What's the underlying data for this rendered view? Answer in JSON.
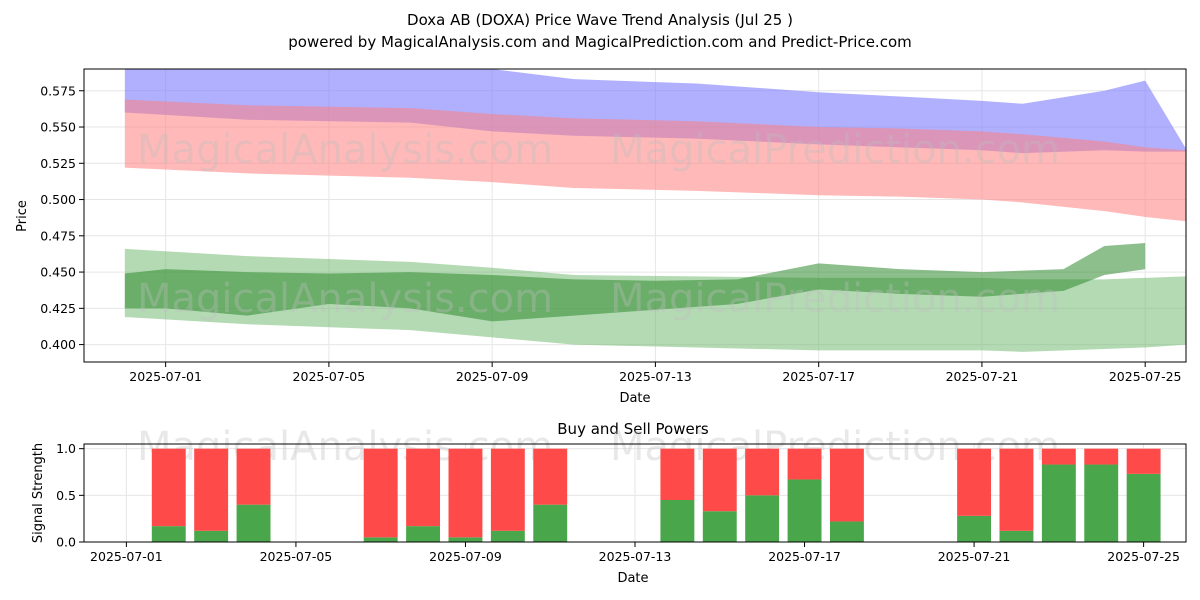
{
  "page": {
    "title_line1": "Doxa AB (DOXA) Price Wave Trend Analysis (Jul 25 )",
    "title_line2": "powered by MagicalAnalysis.com and MagicalPrediction.com and Predict-Price.com",
    "watermarks": [
      "MagicalAnalysis.com",
      "MagicalPrediction.com"
    ]
  },
  "chart_data": [
    {
      "type": "area",
      "title": "",
      "xlabel": "Date",
      "ylabel": "Price",
      "xlim": [
        "2025-06-29",
        "2025-07-26"
      ],
      "ylim": [
        0.388,
        0.59
      ],
      "x_ticks": [
        "2025-07-01",
        "2025-07-05",
        "2025-07-09",
        "2025-07-13",
        "2025-07-17",
        "2025-07-21",
        "2025-07-25"
      ],
      "y_ticks": [
        0.4,
        0.425,
        0.45,
        0.475,
        0.5,
        0.525,
        0.55,
        0.575
      ],
      "y_tick_labels": [
        "0.400",
        "0.425",
        "0.450",
        "0.475",
        "0.500",
        "0.525",
        "0.550",
        "0.575"
      ],
      "grid": true,
      "bands": [
        {
          "color": "#7b7bff",
          "x": [
            "2025-06-30",
            "2025-07-03",
            "2025-07-07",
            "2025-07-09",
            "2025-07-11",
            "2025-07-14",
            "2025-07-17",
            "2025-07-19",
            "2025-07-21",
            "2025-07-22",
            "2025-07-24",
            "2025-07-25",
            "2025-07-26"
          ],
          "upper": [
            0.6,
            0.6,
            0.596,
            0.59,
            0.583,
            0.58,
            0.574,
            0.571,
            0.568,
            0.566,
            0.575,
            0.582,
            0.535
          ],
          "lower": [
            0.56,
            0.555,
            0.553,
            0.547,
            0.544,
            0.542,
            0.538,
            0.536,
            0.534,
            0.532,
            0.534,
            0.533,
            0.533
          ]
        },
        {
          "color": "#ff7f7f",
          "x": [
            "2025-06-30",
            "2025-07-03",
            "2025-07-07",
            "2025-07-09",
            "2025-07-11",
            "2025-07-14",
            "2025-07-17",
            "2025-07-19",
            "2025-07-21",
            "2025-07-22",
            "2025-07-24",
            "2025-07-25",
            "2025-07-26"
          ],
          "upper": [
            0.569,
            0.565,
            0.563,
            0.559,
            0.556,
            0.554,
            0.55,
            0.549,
            0.547,
            0.545,
            0.54,
            0.536,
            0.534
          ],
          "lower": [
            0.522,
            0.518,
            0.515,
            0.512,
            0.508,
            0.506,
            0.503,
            0.502,
            0.5,
            0.498,
            0.492,
            0.488,
            0.485
          ]
        },
        {
          "color": "#6ab56a",
          "x": [
            "2025-06-30",
            "2025-07-03",
            "2025-07-07",
            "2025-07-09",
            "2025-07-11",
            "2025-07-14",
            "2025-07-17",
            "2025-07-19",
            "2025-07-21",
            "2025-07-22",
            "2025-07-24",
            "2025-07-25",
            "2025-07-26"
          ],
          "upper": [
            0.466,
            0.461,
            0.457,
            0.453,
            0.448,
            0.447,
            0.446,
            0.446,
            0.446,
            0.445,
            0.445,
            0.446,
            0.447
          ],
          "lower": [
            0.419,
            0.414,
            0.41,
            0.405,
            0.4,
            0.398,
            0.396,
            0.396,
            0.396,
            0.395,
            0.397,
            0.398,
            0.4
          ]
        },
        {
          "color": "#2e8b2e",
          "x": [
            "2025-06-30",
            "2025-07-01",
            "2025-07-03",
            "2025-07-05",
            "2025-07-07",
            "2025-07-09",
            "2025-07-11",
            "2025-07-13",
            "2025-07-15",
            "2025-07-17",
            "2025-07-19",
            "2025-07-21",
            "2025-07-23",
            "2025-07-24",
            "2025-07-25"
          ],
          "upper": [
            0.449,
            0.452,
            0.45,
            0.449,
            0.45,
            0.448,
            0.445,
            0.444,
            0.445,
            0.456,
            0.452,
            0.45,
            0.452,
            0.468,
            0.47
          ],
          "lower": [
            0.425,
            0.425,
            0.42,
            0.428,
            0.425,
            0.416,
            0.42,
            0.424,
            0.428,
            0.438,
            0.435,
            0.433,
            0.437,
            0.448,
            0.452
          ]
        }
      ]
    },
    {
      "type": "bar",
      "title": "Buy and Sell Powers",
      "xlabel": "Date",
      "ylabel": "Signal Strength",
      "ylim": [
        0,
        1.05
      ],
      "xlim": [
        "2025-06-30",
        "2025-07-26"
      ],
      "x_ticks": [
        "2025-07-01",
        "2025-07-05",
        "2025-07-09",
        "2025-07-13",
        "2025-07-17",
        "2025-07-21",
        "2025-07-25"
      ],
      "y_ticks": [
        0.0,
        0.5,
        1.0
      ],
      "y_tick_labels": [
        "0.0",
        "0.5",
        "1.0"
      ],
      "grid": true,
      "colors": {
        "buy": "#4aa64a",
        "sell": "#ff4a4a"
      },
      "categories": [
        "2025-07-02",
        "2025-07-03",
        "2025-07-04",
        "2025-07-07",
        "2025-07-08",
        "2025-07-09",
        "2025-07-10",
        "2025-07-11",
        "2025-07-14",
        "2025-07-15",
        "2025-07-16",
        "2025-07-17",
        "2025-07-18",
        "2025-07-21",
        "2025-07-22",
        "2025-07-23",
        "2025-07-24",
        "2025-07-25"
      ],
      "series": [
        {
          "values": [
            0.17,
            0.12,
            0.4,
            0.05,
            0.17,
            0.05,
            0.12,
            0.4,
            0.45,
            0.33,
            0.5,
            0.67,
            0.22,
            0.28,
            0.12,
            0.83,
            0.83,
            0.73
          ]
        },
        {
          "values": [
            0.83,
            0.88,
            0.6,
            0.95,
            0.83,
            0.95,
            0.88,
            0.6,
            0.55,
            0.67,
            0.5,
            0.33,
            0.78,
            0.72,
            0.88,
            0.17,
            0.17,
            0.27
          ]
        }
      ]
    }
  ]
}
